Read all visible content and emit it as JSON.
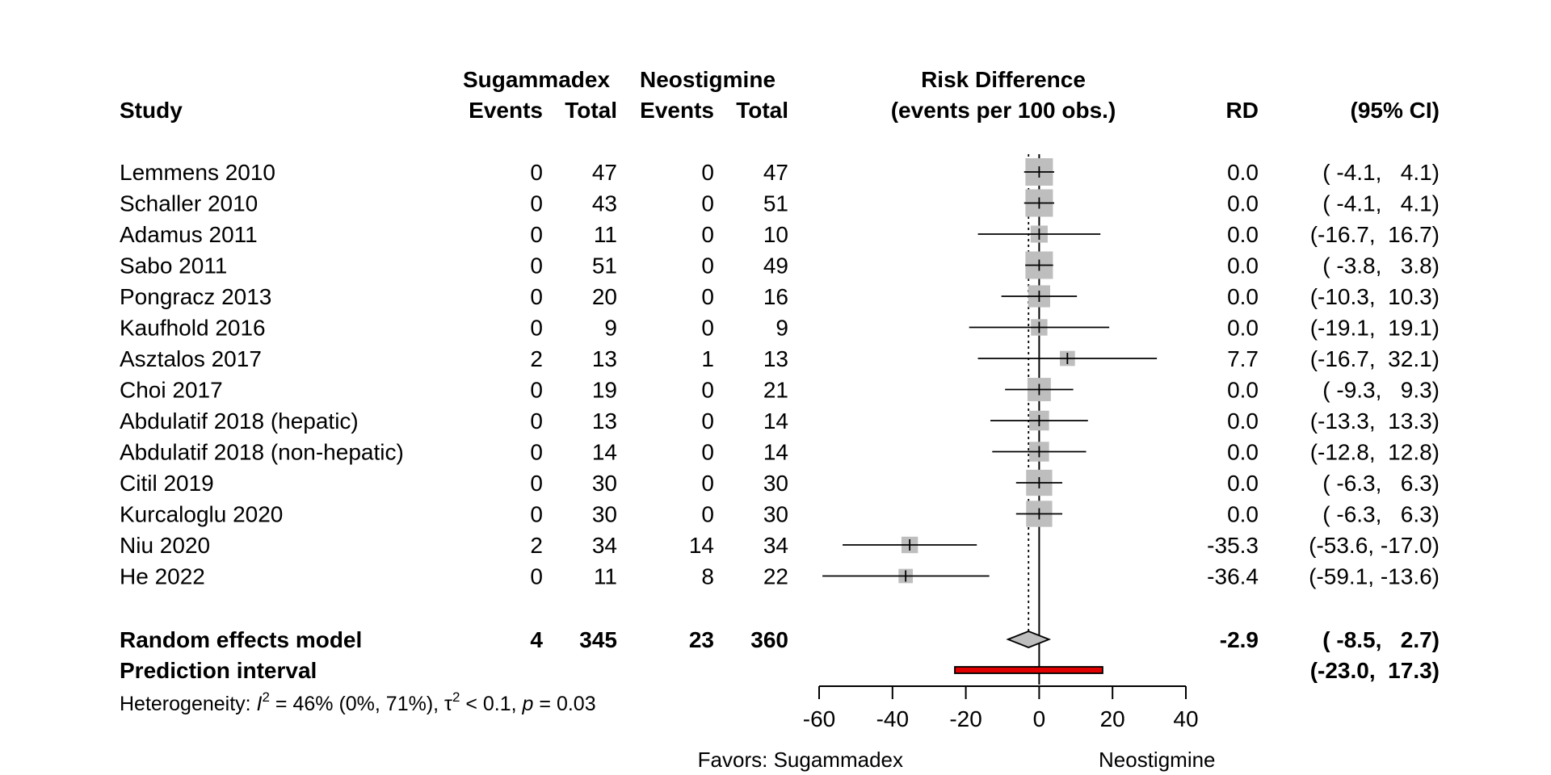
{
  "headers": {
    "study": "Study",
    "group1": "Sugammadex",
    "group2": "Neostigmine",
    "events": "Events",
    "total": "Total",
    "plot_title_line1": "Risk Difference",
    "plot_title_line2": "(events per 100 obs.)",
    "rd": "RD",
    "ci": "(95% CI)"
  },
  "studies": [
    {
      "name": "Lemmens 2010",
      "e1": "0",
      "n1": "47",
      "e2": "0",
      "n2": "47",
      "rd_text": "0.0",
      "ci_text": "( -4.1,   4.1)"
    },
    {
      "name": "Schaller 2010",
      "e1": "0",
      "n1": "43",
      "e2": "0",
      "n2": "51",
      "rd_text": "0.0",
      "ci_text": "( -4.1,   4.1)"
    },
    {
      "name": "Adamus 2011",
      "e1": "0",
      "n1": "11",
      "e2": "0",
      "n2": "10",
      "rd_text": "0.0",
      "ci_text": "(-16.7,  16.7)"
    },
    {
      "name": "Sabo 2011",
      "e1": "0",
      "n1": "51",
      "e2": "0",
      "n2": "49",
      "rd_text": "0.0",
      "ci_text": "( -3.8,   3.8)"
    },
    {
      "name": "Pongracz 2013",
      "e1": "0",
      "n1": "20",
      "e2": "0",
      "n2": "16",
      "rd_text": "0.0",
      "ci_text": "(-10.3,  10.3)"
    },
    {
      "name": "Kaufhold 2016",
      "e1": "0",
      "n1": "9",
      "e2": "0",
      "n2": "9",
      "rd_text": "0.0",
      "ci_text": "(-19.1,  19.1)"
    },
    {
      "name": "Asztalos 2017",
      "e1": "2",
      "n1": "13",
      "e2": "1",
      "n2": "13",
      "rd_text": "7.7",
      "ci_text": "(-16.7,  32.1)"
    },
    {
      "name": "Choi 2017",
      "e1": "0",
      "n1": "19",
      "e2": "0",
      "n2": "21",
      "rd_text": "0.0",
      "ci_text": "( -9.3,   9.3)"
    },
    {
      "name": "Abdulatif 2018 (hepatic)",
      "e1": "0",
      "n1": "13",
      "e2": "0",
      "n2": "14",
      "rd_text": "0.0",
      "ci_text": "(-13.3,  13.3)"
    },
    {
      "name": "Abdulatif 2018 (non-hepatic)",
      "e1": "0",
      "n1": "14",
      "e2": "0",
      "n2": "14",
      "rd_text": "0.0",
      "ci_text": "(-12.8,  12.8)"
    },
    {
      "name": "Citil 2019",
      "e1": "0",
      "n1": "30",
      "e2": "0",
      "n2": "30",
      "rd_text": "0.0",
      "ci_text": "( -6.3,   6.3)"
    },
    {
      "name": "Kurcaloglu 2020",
      "e1": "0",
      "n1": "30",
      "e2": "0",
      "n2": "30",
      "rd_text": "0.0",
      "ci_text": "( -6.3,   6.3)"
    },
    {
      "name": "Niu 2020",
      "e1": "2",
      "n1": "34",
      "e2": "14",
      "n2": "34",
      "rd_text": "-35.3",
      "ci_text": "(-53.6, -17.0)"
    },
    {
      "name": "He 2022",
      "e1": "0",
      "n1": "11",
      "e2": "8",
      "n2": "22",
      "rd_text": "-36.4",
      "ci_text": "(-59.1, -13.6)"
    }
  ],
  "random_effects": {
    "label": "Random effects model",
    "e1": "4",
    "n1": "345",
    "e2": "23",
    "n2": "360",
    "rd_text": "-2.9",
    "ci_text": "( -8.5,   2.7)"
  },
  "prediction": {
    "label": "Prediction interval",
    "ci_text": "(-23.0,  17.3)"
  },
  "heterogeneity": {
    "prefix": "Heterogeneity: ",
    "i2_symbol": "I",
    "i2_sup": "2",
    "i2_value": " = 46% (0%, 71%), ",
    "tau_symbol": "τ",
    "tau_sup": "2",
    "tau_value": " < 0.1, ",
    "p_symbol": "p",
    "p_value": " = 0.03"
  },
  "axis": {
    "favors_left": "Favors: Sugammadex",
    "favors_right": "Neostigmine"
  },
  "colors": {
    "square": "#BEBEBE",
    "diamond": "#BEBEBE",
    "prediction": "#E00000"
  },
  "chart_data": {
    "type": "forest",
    "measure": "Risk Difference (events per 100 obs.)",
    "xlim": [
      -60,
      40
    ],
    "xticks": [
      -60,
      -40,
      -20,
      0,
      20,
      40
    ],
    "reference_line": 0,
    "pooled_line": -2.9,
    "studies": [
      {
        "name": "Lemmens 2010",
        "rd": 0.0,
        "lower": -4.1,
        "upper": 4.1,
        "weight": 1.0
      },
      {
        "name": "Schaller 2010",
        "rd": 0.0,
        "lower": -4.1,
        "upper": 4.1,
        "weight": 1.0
      },
      {
        "name": "Adamus 2011",
        "rd": 0.0,
        "lower": -16.7,
        "upper": 16.7,
        "weight": 0.62
      },
      {
        "name": "Sabo 2011",
        "rd": 0.0,
        "lower": -3.8,
        "upper": 3.8,
        "weight": 1.0
      },
      {
        "name": "Pongracz 2013",
        "rd": 0.0,
        "lower": -10.3,
        "upper": 10.3,
        "weight": 0.8
      },
      {
        "name": "Kaufhold 2016",
        "rd": 0.0,
        "lower": -19.1,
        "upper": 19.1,
        "weight": 0.6
      },
      {
        "name": "Asztalos 2017",
        "rd": 7.7,
        "lower": -16.7,
        "upper": 32.1,
        "weight": 0.55
      },
      {
        "name": "Choi 2017",
        "rd": 0.0,
        "lower": -9.3,
        "upper": 9.3,
        "weight": 0.85
      },
      {
        "name": "Abdulatif 2018 (hepatic)",
        "rd": 0.0,
        "lower": -13.3,
        "upper": 13.3,
        "weight": 0.72
      },
      {
        "name": "Abdulatif 2018 (non-hepatic)",
        "rd": 0.0,
        "lower": -12.8,
        "upper": 12.8,
        "weight": 0.72
      },
      {
        "name": "Citil 2019",
        "rd": 0.0,
        "lower": -6.3,
        "upper": 6.3,
        "weight": 0.95
      },
      {
        "name": "Kurcaloglu 2020",
        "rd": 0.0,
        "lower": -6.3,
        "upper": 6.3,
        "weight": 0.95
      },
      {
        "name": "Niu 2020",
        "rd": -35.3,
        "lower": -53.6,
        "upper": -17.0,
        "weight": 0.6
      },
      {
        "name": "He 2022",
        "rd": -36.4,
        "lower": -59.1,
        "upper": -13.6,
        "weight": 0.52
      }
    ],
    "pooled": {
      "rd": -2.9,
      "lower": -8.5,
      "upper": 2.7
    },
    "prediction_interval": {
      "lower": -23.0,
      "upper": 17.3
    }
  }
}
